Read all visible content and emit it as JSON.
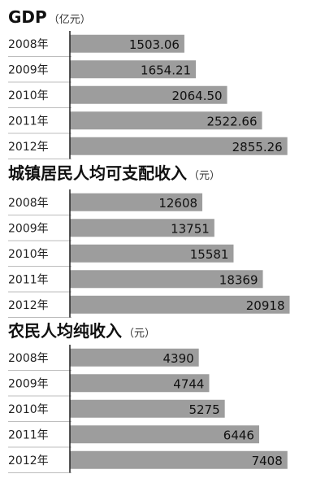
{
  "colors": {
    "bar": "#9d9d9d",
    "axis": "#222222",
    "separator": "#bdbdbd",
    "text": "#111111"
  },
  "chart_data": [
    {
      "type": "bar",
      "orientation": "horizontal",
      "title": "GDP",
      "unit": "（亿元）",
      "categories": [
        "2008年",
        "2009年",
        "2010年",
        "2011年",
        "2012年"
      ],
      "values": [
        1503.06,
        1654.21,
        2064.5,
        2522.66,
        2855.26
      ],
      "labels": [
        "1503.06",
        "1654.21",
        "2064.50",
        "2522.66",
        "2855.26"
      ],
      "xlim": [
        0,
        3200
      ],
      "grid": false,
      "legend": "none"
    },
    {
      "type": "bar",
      "orientation": "horizontal",
      "title": "城镇居民人均可支配收入",
      "unit": "（元）",
      "categories": [
        "2008年",
        "2009年",
        "2010年",
        "2011年",
        "2012年"
      ],
      "values": [
        12608,
        13751,
        15581,
        18369,
        20918
      ],
      "labels": [
        "12608",
        "13751",
        "15581",
        "18369",
        "20918"
      ],
      "xlim": [
        0,
        23200
      ],
      "grid": false,
      "legend": "none"
    },
    {
      "type": "bar",
      "orientation": "horizontal",
      "title": "农民人均纯收入",
      "unit": "（元）",
      "categories": [
        "2008年",
        "2009年",
        "2010年",
        "2011年",
        "2012年"
      ],
      "values": [
        4390,
        4744,
        5275,
        6446,
        7408
      ],
      "labels": [
        "4390",
        "4744",
        "5275",
        "6446",
        "7408"
      ],
      "xlim": [
        0,
        8300
      ],
      "grid": false,
      "legend": "none"
    }
  ]
}
